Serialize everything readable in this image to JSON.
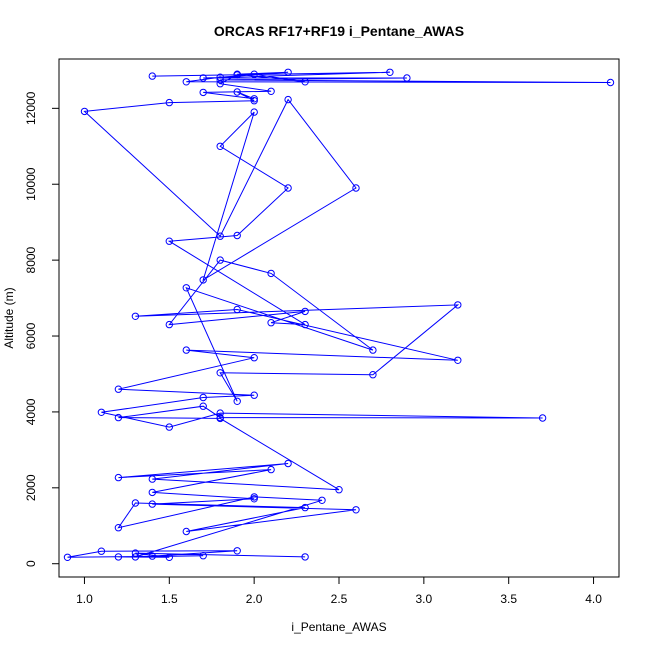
{
  "chart_data": {
    "type": "line",
    "title": "ORCAS RF17+RF19 i_Pentane_AWAS",
    "xlabel": "i_Pentane_AWAS",
    "ylabel": "Altitude (m)",
    "xlim": [
      0.85,
      4.15
    ],
    "ylim": [
      -350,
      13300
    ],
    "x_ticks": [
      "1.0",
      "1.5",
      "2.0",
      "2.5",
      "3.0",
      "3.5",
      "4.0"
    ],
    "y_ticks": [
      "0",
      "2000",
      "4000",
      "6000",
      "8000",
      "10000",
      "12000"
    ],
    "grid": false,
    "marker": "open-circle",
    "color": "#0000ff",
    "series": [
      {
        "x": [
          1.4,
          2.8,
          1.7,
          2.9,
          1.8,
          4.1,
          1.6,
          1.8,
          2.2,
          1.9,
          2.3,
          2.0,
          1.9,
          1.8,
          2.1,
          1.7,
          2.0,
          1.9,
          2.0,
          1.5,
          1.0,
          1.8,
          2.2,
          2.6,
          1.7,
          2.0,
          1.8,
          2.2,
          1.9,
          1.5,
          2.3,
          2.1,
          2.3,
          1.5,
          1.8,
          2.1,
          2.7,
          1.6,
          1.9,
          1.8,
          2.7,
          3.2,
          1.3,
          1.9,
          3.2,
          1.6,
          2.0,
          1.2,
          2.0,
          1.7,
          1.1,
          1.5,
          1.8,
          3.7,
          1.8,
          1.7,
          1.2,
          1.8,
          2.5,
          1.4,
          2.2,
          1.2,
          2.1,
          1.4,
          2.0,
          1.4,
          2.6,
          1.6,
          2.3,
          1.3,
          1.2,
          2.0,
          2.4,
          1.3,
          1.7,
          0.9,
          1.1,
          1.9,
          1.4,
          1.2,
          1.5,
          1.3,
          2.3
        ],
        "y": [
          12850,
          12950,
          12800,
          12800,
          12750,
          12680,
          12700,
          12820,
          12950,
          12900,
          12700,
          12900,
          12880,
          12650,
          12450,
          12420,
          12250,
          12430,
          12200,
          12150,
          11920,
          8630,
          12230,
          9900,
          7480,
          11900,
          11000,
          9900,
          8650,
          8500,
          6300,
          6350,
          6650,
          6300,
          8000,
          7650,
          5630,
          7270,
          4280,
          5030,
          4980,
          6820,
          6520,
          6700,
          5360,
          5630,
          5430,
          4600,
          4440,
          4380,
          3990,
          3600,
          3970,
          3840,
          3850,
          4150,
          3850,
          3830,
          1950,
          2230,
          2640,
          2270,
          2480,
          1880,
          1710,
          1570,
          1420,
          850,
          1480,
          1600,
          950,
          1760,
          1670,
          180,
          210,
          170,
          330,
          340,
          200,
          180,
          170,
          280,
          180
        ]
      }
    ]
  }
}
